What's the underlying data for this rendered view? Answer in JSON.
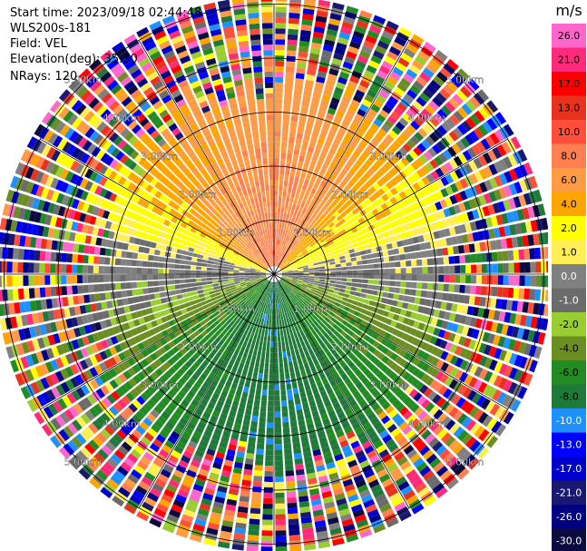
{
  "header": {
    "start_time": "Start time: 2023/09/18 02:44:48",
    "instrument": "WLS200s-181",
    "field": "Field: VEL",
    "elevation": "Elevation(deg): 35.30",
    "nrays": "NRays: 120"
  },
  "colorbar": {
    "unit": "m/s",
    "ticks": [
      "26.0",
      "21.0",
      "17.0",
      "13.0",
      "10.0",
      "8.0",
      "6.0",
      "4.0",
      "2.0",
      "1.0",
      "0.0",
      "-1.0",
      "-2.0",
      "-4.0",
      "-6.0",
      "-8.0",
      "-10.0",
      "-13.0",
      "-17.0",
      "-21.0",
      "-26.0",
      "-30.0"
    ],
    "colors": [
      "#ff66cc",
      "#ff2a7a",
      "#ff0000",
      "#e8321e",
      "#ff4f3a",
      "#ff7f50",
      "#ff9a45",
      "#ffa500",
      "#ffff00",
      "#ffee55",
      "#808080",
      "#6b6b6b",
      "#9acd32",
      "#6b8e23",
      "#228b22",
      "#1f7a3a",
      "#1e90ff",
      "#0000ff",
      "#0000cd",
      "#191970",
      "#000080",
      "#0b0b40"
    ]
  },
  "chart_data": {
    "type": "ppi",
    "field": "VEL",
    "units": "m/s",
    "nrays": 120,
    "range_rings_km": [
      1,
      2,
      3,
      4,
      5
    ],
    "range_ring_labels": [
      "1.00km",
      "2.00km",
      "3.00km",
      "4.00km",
      "5.00km"
    ],
    "vmin": -30.0,
    "vmax": 26.0,
    "pattern": "Northern half positive (yellow/orange, peaks ~8 m/s near N-NW at 1-2.5 km), southern half negative (green, ~-6 m/s), gray near-zero band along E-W axis; noisy multicolor beyond ~3.2 km."
  }
}
